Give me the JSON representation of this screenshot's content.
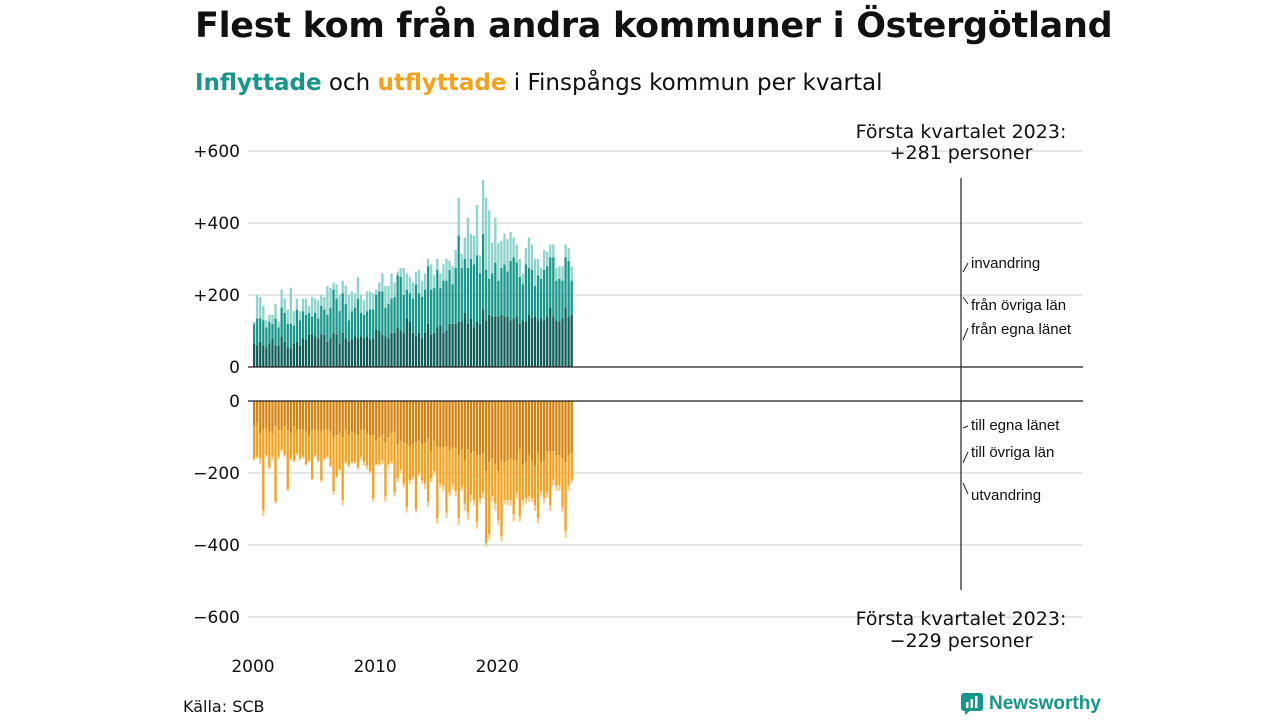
{
  "title": "Flest kom från andra kommuner i Östergötland",
  "subtitle": {
    "in_word": "Inflyttade",
    "and": "och",
    "out_word": "utflyttade",
    "rest": "i Finspångs kommun per kvartal"
  },
  "source": "Källa: SCB",
  "brand": "Newsworthy",
  "colors": {
    "in_local": "#0f5e55",
    "in_other": "#17968a",
    "in_immigration": "#8dd3cb",
    "out_local": "#d3820e",
    "out_other": "#f2a21d",
    "out_emigration": "#f8cd89",
    "grid": "#dddddd"
  },
  "chart_data": {
    "type": "bar",
    "stacked": true,
    "x_ticks": [
      "2000",
      "2010",
      "2020"
    ],
    "y_ticks_top": [
      "+600",
      "+400",
      "+200",
      "0"
    ],
    "y_ticks_top_values": [
      600,
      400,
      200,
      0
    ],
    "y_ticks_bottom": [
      "0",
      "−200",
      "−400",
      "−600"
    ],
    "y_ticks_bottom_values": [
      0,
      -200,
      -400,
      -600
    ],
    "ylim_top": [
      0,
      600
    ],
    "ylim_bottom": [
      -600,
      0
    ],
    "periods_start": "2000K1",
    "periods_end": "2023K1",
    "inflyttade": {
      "series": [
        {
          "name": "från egna länet",
          "values": [
            65,
            60,
            70,
            60,
            55,
            65,
            80,
            60,
            60,
            85,
            70,
            55,
            50,
            65,
            70,
            60,
            80,
            75,
            90,
            90,
            85,
            80,
            90,
            90,
            70,
            80,
            95,
            90,
            65,
            95,
            80,
            70,
            75,
            85,
            80,
            85,
            80,
            85,
            75,
            80,
            105,
            100,
            90,
            85,
            80,
            95,
            95,
            110,
            100,
            95,
            135,
            125,
            95,
            85,
            95,
            80,
            95,
            120,
            90,
            95,
            110,
            115,
            95,
            100,
            120,
            120,
            120,
            125,
            125,
            150,
            120,
            135,
            110,
            125,
            120,
            160,
            130,
            145,
            140,
            140,
            140,
            145,
            140,
            140,
            130,
            135,
            140,
            120,
            130,
            125,
            145,
            135,
            140,
            130,
            135,
            130,
            140,
            165,
            140,
            130,
            125,
            135,
            165,
            140,
            145
          ]
        },
        {
          "name": "från övriga län",
          "values": [
            55,
            75,
            65,
            70,
            55,
            60,
            40,
            75,
            50,
            80,
            80,
            65,
            70,
            50,
            90,
            70,
            75,
            70,
            60,
            50,
            65,
            55,
            80,
            70,
            75,
            85,
            120,
            100,
            90,
            110,
            95,
            60,
            80,
            80,
            110,
            65,
            65,
            70,
            85,
            80,
            95,
            110,
            120,
            80,
            95,
            95,
            100,
            145,
            150,
            105,
            80,
            80,
            95,
            145,
            110,
            115,
            120,
            160,
            125,
            125,
            160,
            105,
            145,
            140,
            150,
            110,
            155,
            240,
            150,
            150,
            155,
            165,
            175,
            185,
            140,
            210,
            140,
            100,
            120,
            150,
            100,
            130,
            145,
            125,
            165,
            170,
            150,
            130,
            100,
            160,
            130,
            135,
            85,
            125,
            110,
            140,
            140,
            140,
            165,
            110,
            120,
            105,
            140,
            155,
            95
          ]
        },
        {
          "name": "invandring",
          "values": [
            5,
            65,
            60,
            40,
            20,
            20,
            25,
            40,
            15,
            50,
            40,
            40,
            100,
            40,
            30,
            25,
            35,
            45,
            20,
            55,
            40,
            50,
            30,
            35,
            80,
            55,
            20,
            40,
            45,
            35,
            50,
            70,
            55,
            40,
            60,
            50,
            40,
            55,
            50,
            45,
            15,
            25,
            50,
            60,
            50,
            70,
            40,
            10,
            25,
            75,
            45,
            45,
            45,
            35,
            65,
            45,
            45,
            20,
            70,
            35,
            30,
            40,
            45,
            60,
            25,
            50,
            50,
            105,
            40,
            60,
            140,
            70,
            80,
            140,
            50,
            150,
            200,
            190,
            85,
            125,
            105,
            75,
            85,
            90,
            80,
            55,
            50,
            50,
            30,
            45,
            85,
            70,
            75,
            45,
            30,
            55,
            40,
            35,
            35,
            35,
            35,
            40,
            35,
            35,
            40
          ]
        }
      ]
    },
    "utflyttade": {
      "series": [
        {
          "name": "till egna länet",
          "values": [
            70,
            60,
            90,
            80,
            75,
            85,
            90,
            70,
            80,
            80,
            70,
            80,
            90,
            70,
            80,
            80,
            80,
            85,
            95,
            80,
            80,
            80,
            85,
            80,
            80,
            85,
            100,
            95,
            90,
            100,
            80,
            95,
            85,
            90,
            95,
            80,
            80,
            90,
            95,
            95,
            110,
            100,
            95,
            115,
            100,
            90,
            85,
            120,
            110,
            115,
            120,
            125,
            120,
            115,
            110,
            120,
            115,
            105,
            140,
            110,
            125,
            130,
            130,
            125,
            135,
            130,
            130,
            150,
            135,
            165,
            135,
            145,
            140,
            150,
            150,
            145,
            195,
            170,
            160,
            175,
            195,
            165,
            170,
            165,
            160,
            165,
            165,
            135,
            175,
            170,
            150,
            165,
            180,
            145,
            170,
            165,
            140,
            140,
            140,
            150,
            150,
            160,
            170,
            150,
            145
          ]
        },
        {
          "name": "till övriga län",
          "values": [
            90,
            95,
            70,
            225,
            75,
            100,
            65,
            210,
            75,
            55,
            80,
            165,
            70,
            95,
            65,
            80,
            75,
            90,
            70,
            135,
            70,
            85,
            135,
            80,
            75,
            95,
            150,
            115,
            100,
            175,
            90,
            85,
            85,
            80,
            90,
            75,
            90,
            90,
            100,
            175,
            65,
            75,
            70,
            150,
            75,
            80,
            170,
            95,
            80,
            115,
            175,
            95,
            90,
            185,
            90,
            100,
            115,
            175,
            75,
            85,
            200,
            100,
            105,
            185,
            120,
            100,
            120,
            175,
            105,
            120,
            175,
            115,
            135,
            185,
            120,
            110,
            200,
            200,
            105,
            110,
            135,
            210,
            105,
            110,
            115,
            150,
            90,
            185,
            100,
            100,
            115,
            105,
            110,
            180,
            80,
            105,
            115,
            150,
            80,
            85,
            85,
            135,
            190,
            85,
            75
          ]
        },
        {
          "name": "utvandring",
          "values": [
            5,
            5,
            15,
            15,
            5,
            5,
            10,
            5,
            5,
            5,
            5,
            5,
            5,
            5,
            5,
            5,
            5,
            5,
            5,
            5,
            5,
            5,
            5,
            5,
            5,
            5,
            10,
            5,
            5,
            15,
            5,
            5,
            5,
            5,
            5,
            10,
            10,
            10,
            5,
            10,
            5,
            5,
            10,
            15,
            10,
            5,
            10,
            10,
            10,
            10,
            15,
            10,
            10,
            10,
            10,
            10,
            15,
            15,
            10,
            10,
            15,
            10,
            15,
            15,
            10,
            15,
            15,
            20,
            10,
            20,
            20,
            20,
            15,
            20,
            15,
            15,
            10,
            15,
            15,
            20,
            15,
            15,
            10,
            15,
            15,
            20,
            15,
            15,
            15,
            15,
            15,
            10,
            15,
            15,
            15,
            15,
            15,
            15,
            15,
            15,
            15,
            15,
            20,
            15,
            10
          ]
        }
      ]
    },
    "annotations": {
      "top_label_line1": "Första kvartalet 2023:",
      "top_label_line2": "+281 personer",
      "bottom_label_line1": "Första kvartalet 2023:",
      "bottom_label_line2": "−229 personer"
    }
  }
}
